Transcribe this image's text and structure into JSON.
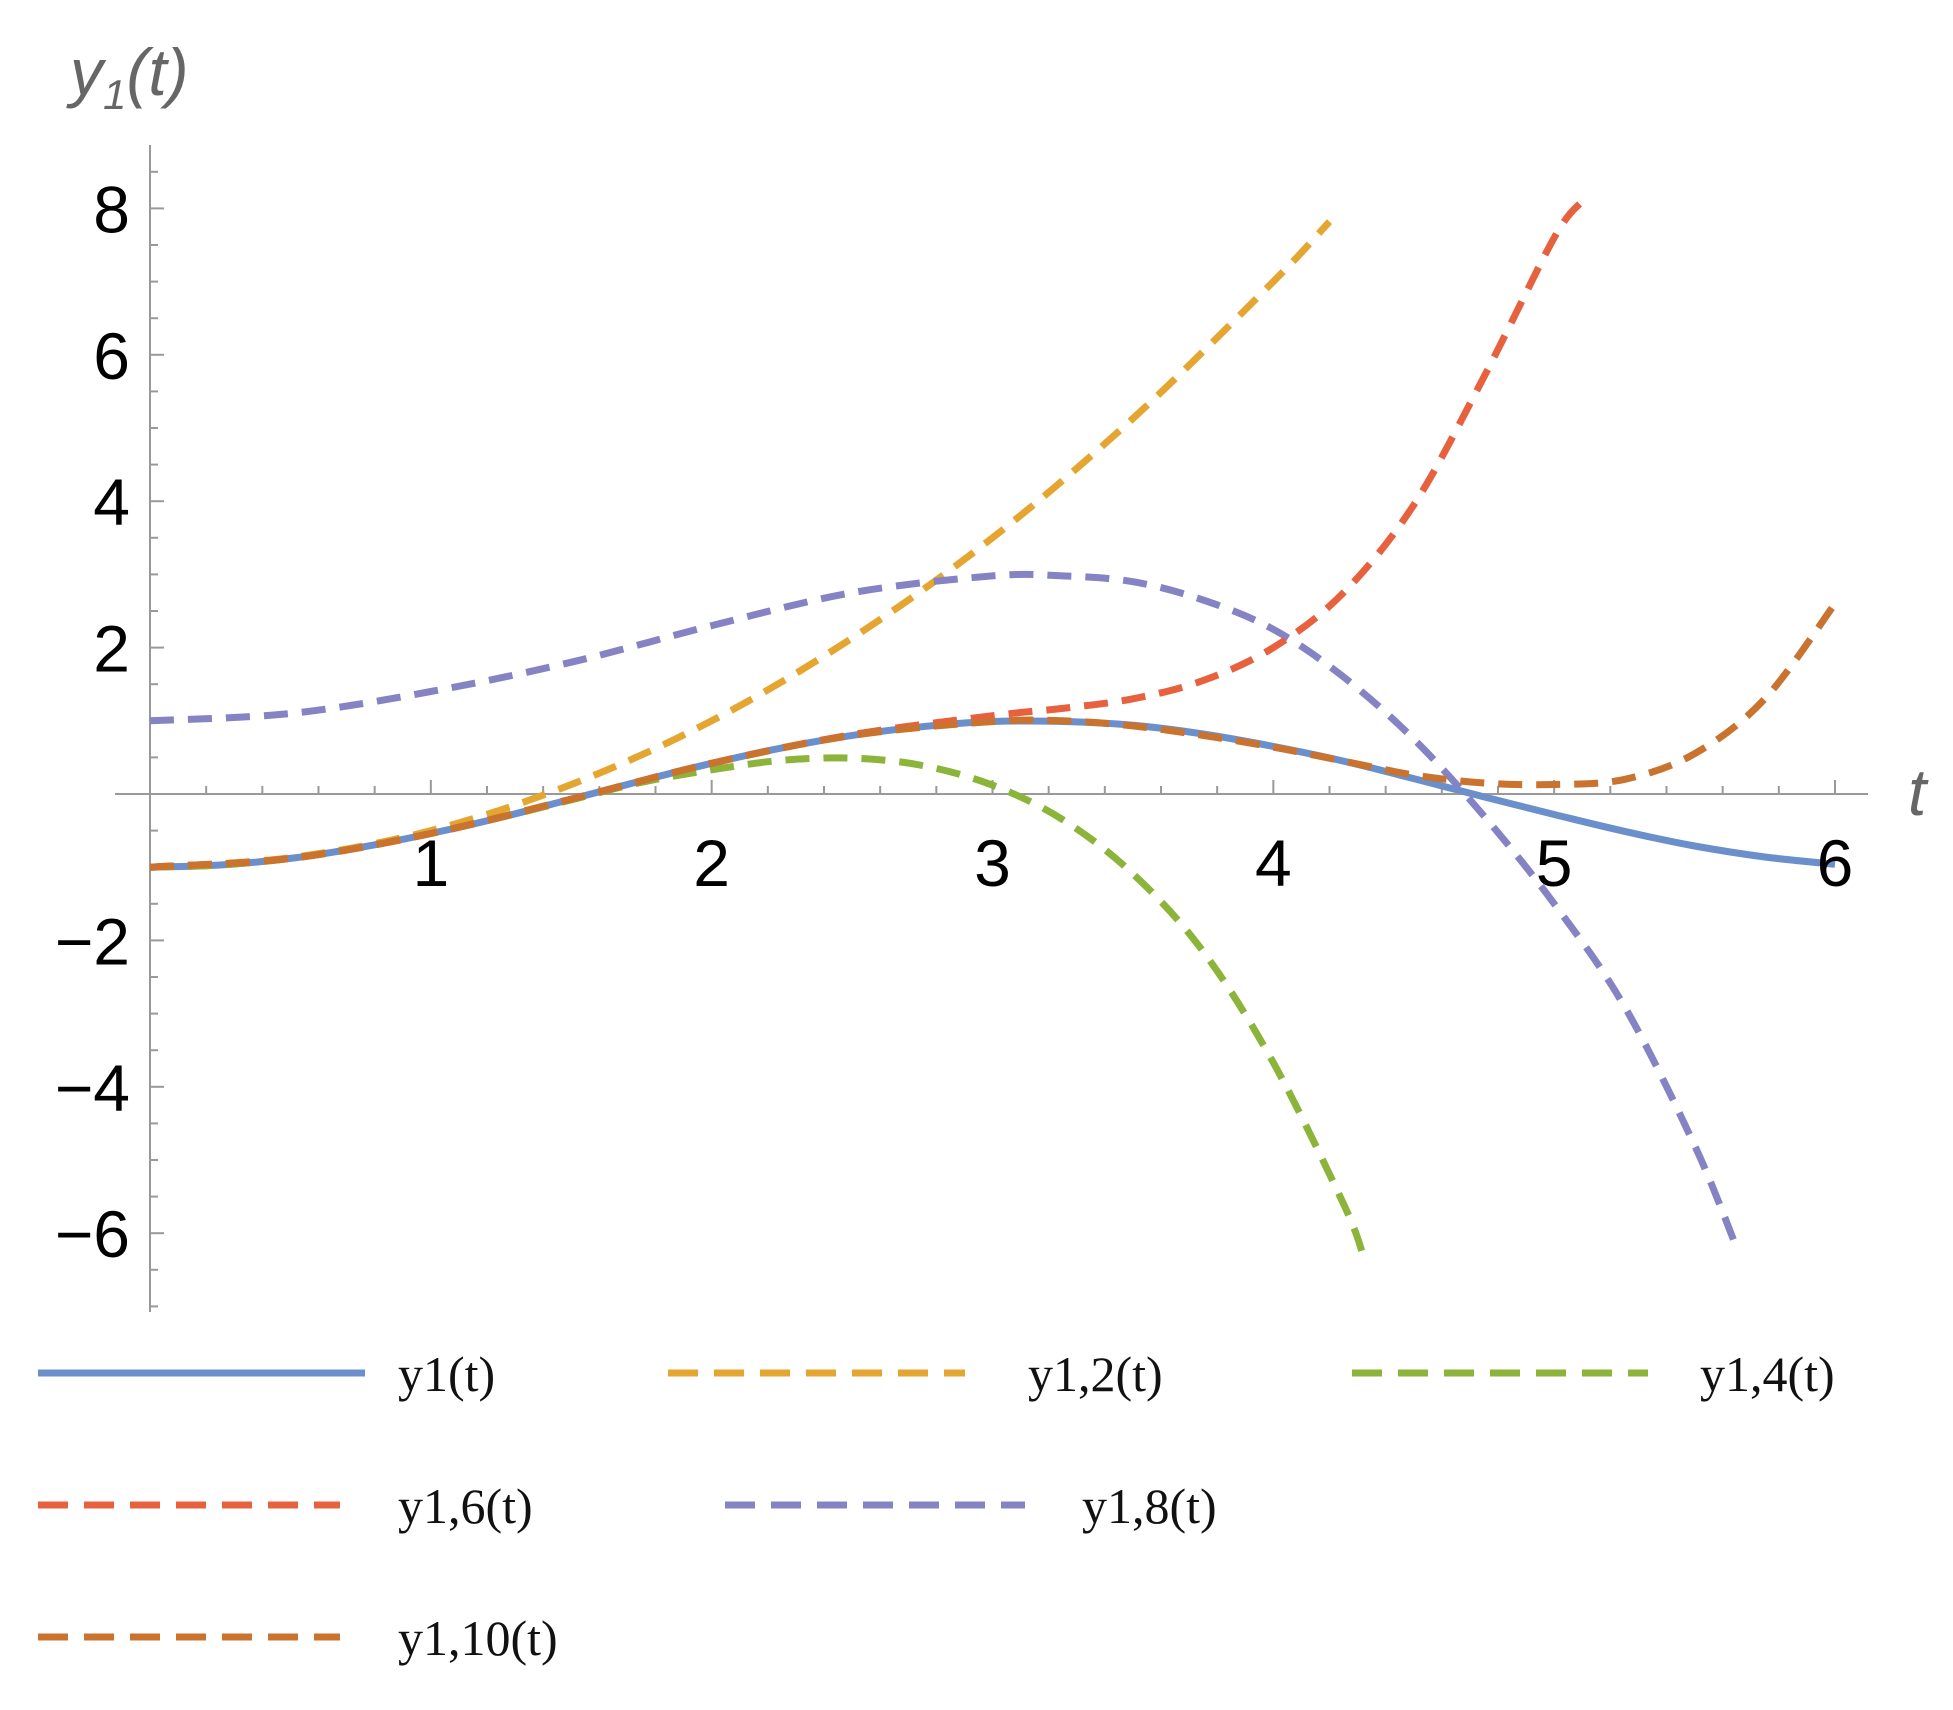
{
  "chart_data": {
    "type": "line",
    "title": "",
    "xlabel": "t",
    "ylabel": "y1(t)",
    "xlim": [
      0,
      6
    ],
    "ylim": [
      -7,
      8.5
    ],
    "x_ticks": [
      1,
      2,
      3,
      4,
      5,
      6
    ],
    "y_ticks": [
      -6,
      -4,
      -2,
      2,
      4,
      6,
      8
    ],
    "x_tick_labels": [
      "1",
      "2",
      "3",
      "4",
      "5",
      "6"
    ],
    "y_tick_labels": [
      "−6",
      "−4",
      "−2",
      "2",
      "4",
      "6",
      "8"
    ],
    "grid": false,
    "legend_position": "bottom",
    "series": [
      {
        "name": "y1(t)",
        "color": "#6b8fcb",
        "dashed": false,
        "x": [
          0,
          0.25,
          0.5,
          0.75,
          1,
          1.25,
          1.5,
          1.75,
          2,
          2.25,
          2.5,
          2.75,
          3,
          3.25,
          3.5,
          3.75,
          4,
          4.25,
          4.5,
          4.75,
          5,
          5.25,
          5.5,
          5.75,
          6
        ],
        "values": [
          -1,
          -0.97,
          -0.88,
          -0.73,
          -0.54,
          -0.32,
          -0.07,
          0.18,
          0.42,
          0.63,
          0.8,
          0.92,
          0.99,
          0.99,
          0.94,
          0.82,
          0.65,
          0.45,
          0.21,
          -0.04,
          -0.28,
          -0.51,
          -0.71,
          -0.86,
          -0.96
        ]
      },
      {
        "name": "y1,2(t)",
        "color": "#e5a631",
        "dashed": true,
        "x": [
          0,
          0.5,
          1,
          1.5,
          2,
          2.5,
          3,
          3.5,
          4,
          4.2
        ],
        "values": [
          -1,
          -0.87,
          -0.5,
          0.13,
          1,
          2.13,
          3.5,
          5.13,
          7,
          7.82
        ]
      },
      {
        "name": "y1,4(t)",
        "color": "#8cb33a",
        "dashed": true,
        "x": [
          0,
          0.25,
          0.5,
          0.75,
          1,
          1.25,
          1.5,
          1.75,
          2,
          2.25,
          2.5,
          2.75,
          3,
          3.25,
          3.5,
          3.75,
          4,
          4.25,
          4.32
        ],
        "values": [
          -1,
          -0.97,
          -0.88,
          -0.73,
          -0.54,
          -0.32,
          -0.08,
          0.16,
          0.33,
          0.46,
          0.49,
          0.39,
          0.12,
          -0.35,
          -1.09,
          -2.15,
          -3.67,
          -5.6,
          -6.3
        ]
      },
      {
        "name": "y1,6(t)",
        "color": "#e8613f",
        "dashed": true,
        "x": [
          0,
          0.5,
          1,
          1.5,
          2,
          2.5,
          3,
          3.25,
          3.5,
          3.75,
          4,
          4.25,
          4.5,
          4.75,
          5,
          5.1
        ],
        "values": [
          -1,
          -0.88,
          -0.54,
          -0.07,
          0.42,
          0.81,
          1.07,
          1.17,
          1.3,
          1.55,
          2.0,
          2.75,
          3.95,
          5.7,
          7.6,
          8.1
        ]
      },
      {
        "name": "y1,8(t)",
        "color": "#8583c3",
        "dashed": true,
        "x": [
          0,
          0.5,
          1,
          1.5,
          2,
          2.5,
          3,
          3.25,
          3.5,
          3.75,
          4,
          4.25,
          4.5,
          4.75,
          5,
          5.25,
          5.5,
          5.65
        ],
        "values": [
          1,
          1.1,
          1.4,
          1.8,
          2.3,
          2.75,
          2.98,
          2.98,
          2.9,
          2.65,
          2.25,
          1.6,
          0.75,
          -0.3,
          -1.5,
          -2.9,
          -4.8,
          -6.2
        ]
      },
      {
        "name": "y1,10(t)",
        "color": "#c9732e",
        "dashed": true,
        "x": [
          0,
          0.5,
          1,
          1.5,
          2,
          2.5,
          3,
          3.25,
          3.5,
          3.75,
          4,
          4.25,
          4.5,
          4.75,
          5,
          5.25,
          5.5,
          5.75,
          6
        ],
        "values": [
          -1,
          -0.88,
          -0.54,
          -0.07,
          0.42,
          0.8,
          0.99,
          1.0,
          0.93,
          0.8,
          0.64,
          0.45,
          0.26,
          0.15,
          0.13,
          0.2,
          0.55,
          1.3,
          2.6
        ]
      }
    ],
    "legend": [
      {
        "label": "y1(t)",
        "color": "#6b8fcb",
        "dashed": false
      },
      {
        "label": "y1,2(t)",
        "color": "#e5a631",
        "dashed": true
      },
      {
        "label": "y1,4(t)",
        "color": "#8cb33a",
        "dashed": true
      },
      {
        "label": "y1,6(t)",
        "color": "#e8613f",
        "dashed": true
      },
      {
        "label": "y1,8(t)",
        "color": "#8583c3",
        "dashed": true
      },
      {
        "label": "y1,10(t)",
        "color": "#c9732e",
        "dashed": true
      }
    ]
  }
}
